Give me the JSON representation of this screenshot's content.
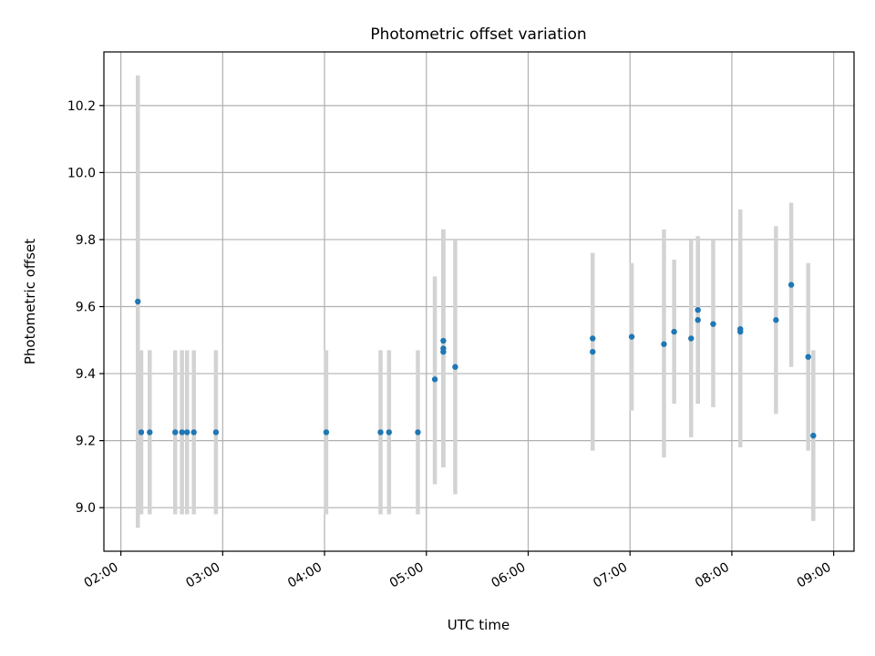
{
  "chart_data": {
    "type": "scatter",
    "title": "Photometric offset variation",
    "xlabel": "UTC time",
    "ylabel": "Photometric offset",
    "x_unit": "UTC time (HH:MM)",
    "xlim": [
      "01:50",
      "09:12"
    ],
    "ylim": [
      8.87,
      10.36
    ],
    "x_ticks": [
      "02:00",
      "03:00",
      "04:00",
      "05:00",
      "06:00",
      "07:00",
      "08:00",
      "09:00"
    ],
    "y_ticks": [
      9.0,
      9.2,
      9.4,
      9.6,
      9.8,
      10.0,
      10.2
    ],
    "y_tick_labels": [
      "9.0",
      "9.2",
      "9.4",
      "9.6",
      "9.8",
      "10.0",
      "10.2"
    ],
    "grid": true,
    "legend": "none",
    "colors": {
      "point": "#1f77b4",
      "errorbar": "#d3d3d3",
      "grid": "#b0b0b0"
    },
    "series": [
      {
        "points": [
          {
            "x": "02:10",
            "y": 9.615,
            "ylow": 8.94,
            "yhigh": 10.29
          },
          {
            "x": "02:12",
            "y": 9.225,
            "ylow": 8.98,
            "yhigh": 9.47
          },
          {
            "x": "02:17",
            "y": 9.225,
            "ylow": 8.98,
            "yhigh": 9.47
          },
          {
            "x": "02:32",
            "y": 9.225,
            "ylow": 8.98,
            "yhigh": 9.47
          },
          {
            "x": "02:36",
            "y": 9.225,
            "ylow": 8.98,
            "yhigh": 9.47
          },
          {
            "x": "02:39",
            "y": 9.225,
            "ylow": 8.98,
            "yhigh": 9.47
          },
          {
            "x": "02:43",
            "y": 9.225,
            "ylow": 8.98,
            "yhigh": 9.47
          },
          {
            "x": "02:56",
            "y": 9.225,
            "ylow": 8.98,
            "yhigh": 9.47
          },
          {
            "x": "04:01",
            "y": 9.225,
            "ylow": 8.98,
            "yhigh": 9.47
          },
          {
            "x": "04:33",
            "y": 9.225,
            "ylow": 8.98,
            "yhigh": 9.47
          },
          {
            "x": "04:38",
            "y": 9.225,
            "ylow": 8.98,
            "yhigh": 9.47
          },
          {
            "x": "04:55",
            "y": 9.225,
            "ylow": 8.98,
            "yhigh": 9.47
          },
          {
            "x": "05:05",
            "y": 9.383,
            "ylow": 9.07,
            "yhigh": 9.69
          },
          {
            "x": "05:10",
            "y": 9.465,
            "ylow": 9.12,
            "yhigh": 9.83
          },
          {
            "x": "05:10",
            "y": 9.475,
            "ylow": 9.12,
            "yhigh": 9.83
          },
          {
            "x": "05:10",
            "y": 9.498,
            "ylow": 9.12,
            "yhigh": 9.83
          },
          {
            "x": "05:17",
            "y": 9.42,
            "ylow": 9.04,
            "yhigh": 9.8
          },
          {
            "x": "06:38",
            "y": 9.505,
            "ylow": 9.17,
            "yhigh": 9.76
          },
          {
            "x": "06:38",
            "y": 9.465,
            "ylow": 9.17,
            "yhigh": 9.76
          },
          {
            "x": "07:01",
            "y": 9.51,
            "ylow": 9.29,
            "yhigh": 9.73
          },
          {
            "x": "07:20",
            "y": 9.488,
            "ylow": 9.15,
            "yhigh": 9.83
          },
          {
            "x": "07:26",
            "y": 9.525,
            "ylow": 9.31,
            "yhigh": 9.74
          },
          {
            "x": "07:36",
            "y": 9.505,
            "ylow": 9.21,
            "yhigh": 9.8
          },
          {
            "x": "07:40",
            "y": 9.59,
            "ylow": 9.31,
            "yhigh": 9.81
          },
          {
            "x": "07:40",
            "y": 9.56,
            "ylow": 9.31,
            "yhigh": 9.81
          },
          {
            "x": "07:49",
            "y": 9.548,
            "ylow": 9.3,
            "yhigh": 9.8
          },
          {
            "x": "08:05",
            "y": 9.525,
            "ylow": 9.18,
            "yhigh": 9.82
          },
          {
            "x": "08:05",
            "y": 9.533,
            "ylow": 9.18,
            "yhigh": 9.89
          },
          {
            "x": "08:26",
            "y": 9.56,
            "ylow": 9.28,
            "yhigh": 9.84
          },
          {
            "x": "08:35",
            "y": 9.665,
            "ylow": 9.42,
            "yhigh": 9.91
          },
          {
            "x": "08:45",
            "y": 9.45,
            "ylow": 9.17,
            "yhigh": 9.73
          },
          {
            "x": "08:48",
            "y": 9.215,
            "ylow": 8.96,
            "yhigh": 9.47
          }
        ]
      }
    ]
  }
}
